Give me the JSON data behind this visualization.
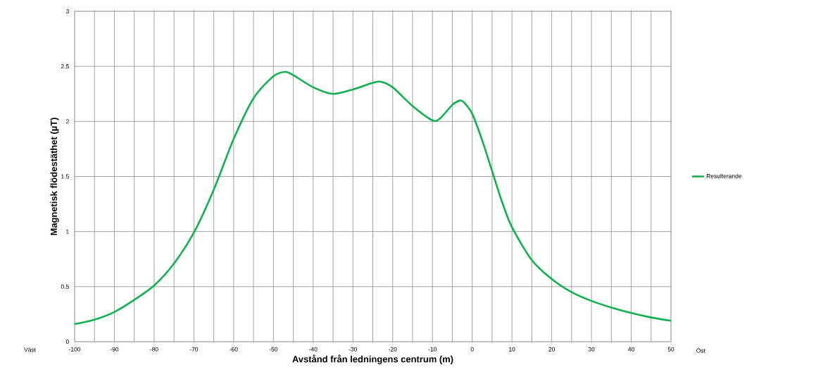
{
  "chart_data": {
    "type": "line",
    "xlabel": "Avstånd från ledningens centrum (m)",
    "ylabel": "Magnetisk flödestäthet (µT)",
    "annotations": [
      "Väst",
      "Öst"
    ],
    "x": [
      -100,
      -95,
      -90,
      -85,
      -80,
      -75,
      -70,
      -65,
      -60,
      -55,
      -50,
      -47,
      -45,
      -40,
      -35,
      -30,
      -25,
      -23,
      -20,
      -15,
      -10,
      -8,
      -5,
      -3,
      -2,
      0,
      2.5,
      5,
      7.5,
      10,
      15,
      20,
      25,
      30,
      35,
      40,
      45,
      50
    ],
    "series": [
      {
        "name": "Resulterande",
        "color": "#12b04f",
        "values": [
          0.16,
          0.2,
          0.27,
          0.38,
          0.51,
          0.71,
          0.99,
          1.38,
          1.84,
          2.21,
          2.41,
          2.45,
          2.42,
          2.31,
          2.25,
          2.29,
          2.35,
          2.36,
          2.31,
          2.14,
          2.01,
          2.03,
          2.15,
          2.19,
          2.17,
          2.07,
          1.83,
          1.55,
          1.27,
          1.04,
          0.74,
          0.57,
          0.45,
          0.37,
          0.31,
          0.26,
          0.22,
          0.19
        ]
      }
    ],
    "xlim": [
      -100,
      50
    ],
    "xticks": [
      -100,
      -90,
      -80,
      -70,
      -60,
      -50,
      -40,
      -30,
      -20,
      -10,
      0,
      10,
      20,
      30,
      40,
      50
    ],
    "ylim": [
      0,
      3
    ],
    "yticks": [
      0,
      0.5,
      1,
      1.5,
      2,
      2.5,
      3
    ],
    "grid": true,
    "legend": "right"
  }
}
